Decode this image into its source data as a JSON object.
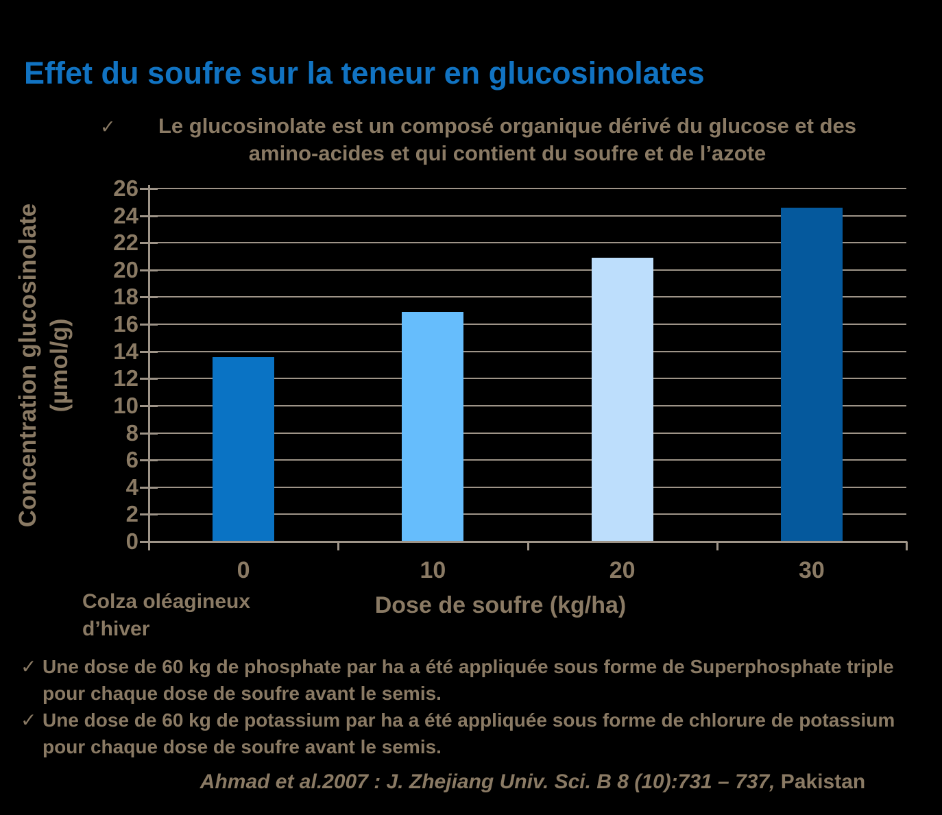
{
  "slide": {
    "title": "Effet du soufre sur la teneur en glucosinolates",
    "subtitle_check": "✓",
    "subtitle_line1": "Le glucosinolate est un composé organique dérivé du glucose et des",
    "subtitle_line2": "amino-acides et qui contient du soufre et de l’azote"
  },
  "chart_data": {
    "type": "bar",
    "categories": [
      "0",
      "10",
      "20",
      "30"
    ],
    "values": [
      13.6,
      16.9,
      20.9,
      24.6
    ],
    "bar_colors": [
      "#0a73c4",
      "#66bdfc",
      "#bddefc",
      "#05599d"
    ],
    "title": "",
    "xlabel": "Dose de soufre (kg/ha)",
    "ylabel": "Concentration glucosinolate (µmol/g)",
    "ylabel_lines": [
      "Concentration glucosinolate",
      "(µmol/g)"
    ],
    "ylim": [
      0,
      26
    ],
    "ytick_step": 2,
    "grid": true,
    "legend_position": "none",
    "category_note_lines": [
      "Colza oléagineux",
      "d’hiver"
    ]
  },
  "notes": [
    {
      "check": "✓",
      "line1": "Une dose de 60 kg de phosphate par ha a été appliquée sous forme de Superphosphate triple",
      "line2": "pour chaque dose de soufre avant le semis."
    },
    {
      "check": "✓",
      "line1": "Une dose de 60 kg de potassium par ha a été appliquée sous forme de chlorure de potassium",
      "line2": "pour chaque dose de soufre avant le semis."
    }
  ],
  "citation": {
    "italic_part": "Ahmad et al.2007 : J. Zhejiang Univ. Sci. B 8 (10):731 – 737,",
    "regular_part": " Pakistan"
  },
  "colors": {
    "background": "#000000",
    "title": "#1173c2",
    "text": "#8a7a64",
    "grid": "#9e9488"
  }
}
